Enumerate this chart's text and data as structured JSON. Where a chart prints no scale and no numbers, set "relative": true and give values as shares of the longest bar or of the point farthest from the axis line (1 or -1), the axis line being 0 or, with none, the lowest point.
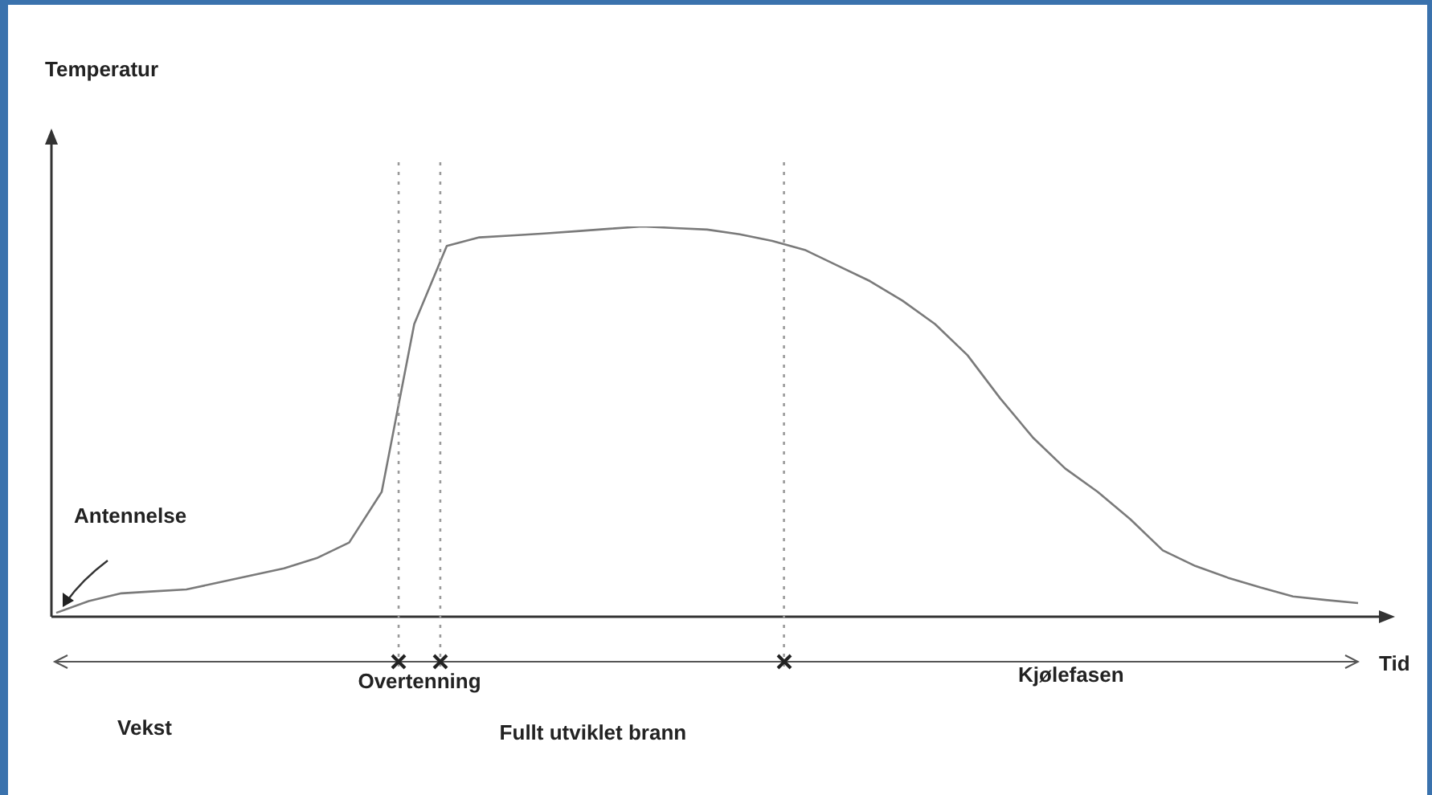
{
  "chart_data": {
    "type": "line",
    "relative": true,
    "marker": "none",
    "line_style": "solid",
    "xlabel": "Tid",
    "categories": [
      null,
      null,
      null,
      null,
      null,
      null,
      null,
      null,
      null,
      null,
      null,
      null,
      null,
      null,
      null,
      null,
      null,
      null,
      null,
      null,
      null,
      null,
      null,
      null,
      null,
      null,
      null,
      null,
      null,
      null,
      null,
      null,
      null,
      null,
      null,
      null,
      null,
      null,
      null,
      null,
      null
    ],
    "series": [
      {
        "color": "#7a7a7a",
        "values": [
          0.01,
          0.04,
          0.06,
          0.065,
          0.07,
          0.088,
          0.106,
          0.124,
          0.15,
          0.19,
          0.32,
          0.75,
          0.95,
          0.972,
          0.977,
          0.982,
          0.988,
          0.994,
          1,
          0.996,
          0.992,
          0.98,
          0.963,
          0.94,
          0.9,
          0.86,
          0.81,
          0.75,
          0.67,
          0.56,
          0.46,
          0.38,
          0.32,
          0.25,
          0.17,
          0.13,
          0.1,
          0.075,
          0.052,
          0.043,
          0.035
        ]
      }
    ],
    "annotations": [
      "Temperatur",
      "Antennelse",
      "Vekst",
      "Overtenning",
      "Fullt utviklet brann",
      "Kjølefasen"
    ]
  }
}
